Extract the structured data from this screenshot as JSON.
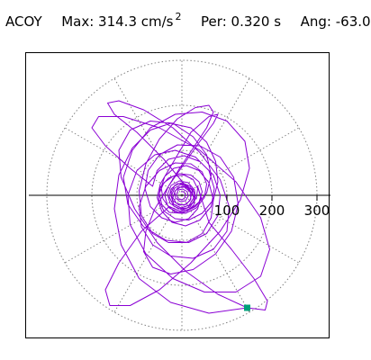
{
  "header": {
    "channel": "ACOY",
    "max_label": "Max:",
    "max_value": "314.3 cm/s",
    "max_exp": "2",
    "per_label": "Per:",
    "per_value": "0.320 s",
    "ang_label": "Ang:",
    "ang_value": "-63.0"
  },
  "chart_data": {
    "type": "line",
    "subtype": "polar-orbit",
    "title": "",
    "xlabel": "",
    "ylabel": "",
    "radial_ticks": [
      "100",
      "200",
      "300"
    ],
    "radial_tick_values": [
      100,
      200,
      300
    ],
    "range": [
      -340,
      340
    ],
    "grid": true,
    "grid_style": "dotted",
    "spoke_angles_deg": [
      0,
      30,
      60,
      90,
      120,
      150,
      180,
      210,
      240,
      270,
      300,
      330
    ],
    "ring_values": [
      100,
      200,
      300
    ],
    "colors": {
      "trace": "#8a00d4",
      "marker": "#00a07a",
      "grid": "#808080",
      "axis": "#000000"
    },
    "marker_point": {
      "x": 145,
      "y": -250
    },
    "series": [
      {
        "points": [
          [
            145,
            -250
          ],
          [
            60,
            -262
          ],
          [
            -25,
            -238
          ],
          [
            -95,
            -185
          ],
          [
            -135,
            -110
          ],
          [
            -150,
            -30
          ],
          [
            -140,
            45
          ],
          [
            -110,
            105
          ],
          [
            -70,
            145
          ],
          [
            -25,
            160
          ],
          [
            20,
            150
          ],
          [
            55,
            118
          ],
          [
            75,
            75
          ],
          [
            80,
            30
          ],
          [
            70,
            -10
          ],
          [
            45,
            -40
          ],
          [
            15,
            -55
          ],
          [
            -15,
            -52
          ],
          [
            -40,
            -35
          ],
          [
            -52,
            -10
          ],
          [
            -48,
            18
          ],
          [
            -30,
            38
          ],
          [
            -5,
            48
          ],
          [
            20,
            45
          ],
          [
            38,
            30
          ],
          [
            45,
            8
          ],
          [
            38,
            -15
          ],
          [
            20,
            -30
          ],
          [
            -5,
            -35
          ],
          [
            -28,
            -25
          ],
          [
            -90,
            -80
          ],
          [
            -140,
            -150
          ],
          [
            -170,
            -210
          ],
          [
            -160,
            -245
          ],
          [
            -115,
            -245
          ],
          [
            -50,
            -210
          ],
          [
            20,
            -150
          ],
          [
            85,
            -80
          ],
          [
            130,
            -10
          ],
          [
            150,
            60
          ],
          [
            140,
            120
          ],
          [
            100,
            165
          ],
          [
            45,
            185
          ],
          [
            -15,
            180
          ],
          [
            -70,
            150
          ],
          [
            -110,
            100
          ],
          [
            -130,
            40
          ],
          [
            -120,
            -20
          ],
          [
            -85,
            -70
          ],
          [
            -35,
            -100
          ],
          [
            15,
            -105
          ],
          [
            55,
            -85
          ],
          [
            80,
            -45
          ],
          [
            85,
            0
          ],
          [
            70,
            45
          ],
          [
            40,
            75
          ],
          [
            5,
            88
          ],
          [
            -30,
            80
          ],
          [
            -55,
            55
          ],
          [
            -65,
            20
          ],
          [
            -115,
            60
          ],
          [
            -170,
            110
          ],
          [
            -200,
            150
          ],
          [
            -185,
            175
          ],
          [
            -130,
            175
          ],
          [
            -50,
            150
          ],
          [
            40,
            100
          ],
          [
            120,
            30
          ],
          [
            175,
            -50
          ],
          [
            195,
            -120
          ],
          [
            175,
            -180
          ],
          [
            120,
            -215
          ],
          [
            50,
            -215
          ],
          [
            -20,
            -185
          ],
          [
            -80,
            -130
          ],
          [
            -115,
            -65
          ],
          [
            -120,
            0
          ],
          [
            -100,
            55
          ],
          [
            -60,
            90
          ],
          [
            -15,
            100
          ],
          [
            30,
            85
          ],
          [
            60,
            55
          ],
          [
            72,
            15
          ],
          [
            65,
            -25
          ],
          [
            40,
            -55
          ],
          [
            8,
            -68
          ],
          [
            -22,
            -60
          ],
          [
            -45,
            -35
          ],
          [
            -55,
            -5
          ],
          [
            -48,
            25
          ],
          [
            20,
            140
          ],
          [
            60,
            175
          ],
          [
            80,
            180
          ],
          [
            70,
            160
          ],
          [
            40,
            120
          ],
          [
            5,
            70
          ],
          [
            -30,
            20
          ],
          [
            -60,
            -30
          ],
          [
            -80,
            -80
          ],
          [
            -85,
            -125
          ],
          [
            -65,
            -160
          ],
          [
            -25,
            -175
          ],
          [
            25,
            -165
          ],
          [
            75,
            -130
          ],
          [
            110,
            -80
          ],
          [
            125,
            -20
          ],
          [
            115,
            40
          ],
          [
            85,
            85
          ],
          [
            40,
            110
          ],
          [
            -10,
            112
          ],
          [
            -50,
            90
          ],
          [
            -75,
            55
          ],
          [
            -82,
            15
          ],
          [
            -70,
            -25
          ],
          [
            -45,
            -50
          ],
          [
            -15,
            -60
          ],
          [
            15,
            -52
          ],
          [
            35,
            -30
          ],
          [
            42,
            -5
          ],
          [
            35,
            20
          ],
          [
            60,
            -60
          ],
          [
            110,
            -120
          ],
          [
            160,
            -185
          ],
          [
            190,
            -235
          ],
          [
            185,
            -255
          ],
          [
            145,
            -250
          ],
          [
            80,
            -220
          ],
          [
            10,
            -170
          ],
          [
            -55,
            -105
          ],
          [
            -105,
            -30
          ],
          [
            -135,
            40
          ],
          [
            -140,
            100
          ],
          [
            -115,
            145
          ],
          [
            -70,
            165
          ],
          [
            -20,
            160
          ],
          [
            25,
            130
          ],
          [
            55,
            90
          ],
          [
            65,
            45
          ],
          [
            55,
            5
          ],
          [
            30,
            -25
          ],
          [
            0,
            -40
          ],
          [
            -28,
            -38
          ],
          [
            -45,
            -20
          ],
          [
            -50,
            5
          ],
          [
            -40,
            28
          ],
          [
            -20,
            42
          ],
          [
            5,
            45
          ],
          [
            25,
            35
          ],
          [
            35,
            15
          ],
          [
            32,
            -8
          ],
          [
            -40,
            80
          ],
          [
            -100,
            140
          ],
          [
            -150,
            180
          ],
          [
            -165,
            205
          ],
          [
            -140,
            210
          ],
          [
            -85,
            190
          ],
          [
            -20,
            150
          ],
          [
            40,
            95
          ],
          [
            85,
            35
          ],
          [
            105,
            -25
          ],
          [
            100,
            -80
          ],
          [
            70,
            -120
          ],
          [
            25,
            -140
          ],
          [
            -25,
            -135
          ],
          [
            -65,
            -110
          ],
          [
            -90,
            -70
          ],
          [
            -95,
            -25
          ],
          [
            -80,
            20
          ],
          [
            -50,
            55
          ],
          [
            -15,
            72
          ],
          [
            20,
            70
          ],
          [
            45,
            52
          ],
          [
            55,
            25
          ],
          [
            50,
            -5
          ],
          [
            32,
            -28
          ],
          [
            8,
            -40
          ],
          [
            -15,
            -38
          ],
          [
            -32,
            -22
          ],
          [
            -38,
            0
          ],
          [
            -30,
            20
          ],
          [
            -5,
            60
          ],
          [
            25,
            105
          ],
          [
            55,
            150
          ],
          [
            70,
            185
          ],
          [
            60,
            200
          ],
          [
            30,
            195
          ],
          [
            -10,
            170
          ],
          [
            -50,
            125
          ],
          [
            -80,
            70
          ],
          [
            -95,
            10
          ],
          [
            -90,
            -45
          ],
          [
            -65,
            -85
          ],
          [
            -30,
            -105
          ],
          [
            10,
            -105
          ],
          [
            45,
            -85
          ],
          [
            65,
            -50
          ],
          [
            70,
            -10
          ],
          [
            60,
            28
          ],
          [
            38,
            55
          ],
          [
            10,
            66
          ],
          [
            -18,
            60
          ],
          [
            -38,
            42
          ],
          [
            -46,
            18
          ],
          [
            -42,
            -8
          ],
          [
            -28,
            -28
          ],
          [
            -8,
            -38
          ],
          [
            12,
            -35
          ],
          [
            26,
            -22
          ],
          [
            30,
            -4
          ],
          [
            24,
            14
          ],
          [
            0,
            20
          ],
          [
            -15,
            10
          ],
          [
            -20,
            -5
          ],
          [
            -12,
            -18
          ],
          [
            5,
            -22
          ],
          [
            18,
            -12
          ],
          [
            22,
            5
          ],
          [
            14,
            18
          ],
          [
            -2,
            24
          ],
          [
            -16,
            16
          ],
          [
            -24,
            -2
          ],
          [
            -18,
            -20
          ],
          [
            -2,
            -28
          ],
          [
            16,
            -22
          ],
          [
            26,
            -6
          ],
          [
            22,
            12
          ],
          [
            8,
            24
          ],
          [
            -10,
            26
          ],
          [
            -24,
            14
          ],
          [
            -28,
            -4
          ],
          [
            -18,
            -24
          ],
          [
            0,
            -32
          ],
          [
            18,
            -26
          ],
          [
            30,
            -8
          ],
          [
            28,
            12
          ],
          [
            14,
            28
          ],
          [
            -6,
            32
          ],
          [
            -24,
            22
          ],
          [
            -32,
            2
          ],
          [
            -26,
            -18
          ],
          [
            -8,
            -30
          ],
          [
            12,
            -28
          ],
          [
            26,
            -14
          ],
          [
            28,
            4
          ],
          [
            18,
            20
          ],
          [
            0,
            28
          ],
          [
            -16,
            22
          ],
          [
            -24,
            6
          ],
          [
            -20,
            -12
          ],
          [
            -6,
            -22
          ],
          [
            10,
            -20
          ],
          [
            20,
            -8
          ],
          [
            18,
            8
          ],
          [
            6,
            18
          ],
          [
            -8,
            18
          ],
          [
            -16,
            8
          ],
          [
            -14,
            -6
          ],
          [
            -4,
            -14
          ],
          [
            8,
            -12
          ],
          [
            14,
            -2
          ],
          [
            12,
            8
          ],
          [
            2,
            14
          ],
          [
            -8,
            12
          ],
          [
            -12,
            2
          ],
          [
            -8,
            -8
          ],
          [
            0,
            -10
          ],
          [
            6,
            -6
          ],
          [
            8,
            2
          ],
          [
            4,
            8
          ],
          [
            -2,
            8
          ]
        ]
      }
    ]
  }
}
